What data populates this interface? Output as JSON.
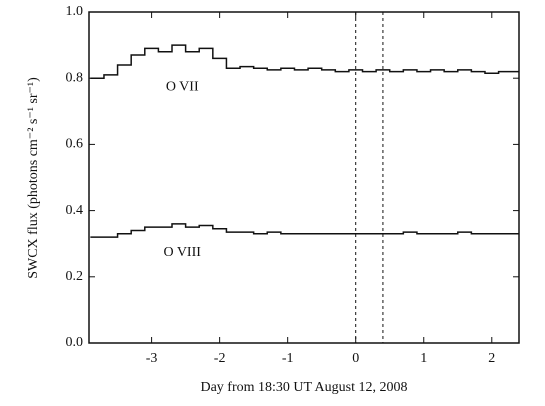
{
  "chart_data": {
    "type": "step",
    "xlabel": "Day from 18:30 UT August 12, 2008",
    "ylabel": "SWCX flux (photons cm⁻² s⁻¹ sr⁻¹)",
    "x": [
      -3.9,
      -3.7,
      -3.5,
      -3.3,
      -3.1,
      -2.9,
      -2.7,
      -2.5,
      -2.3,
      -2.1,
      -1.9,
      -1.7,
      -1.5,
      -1.3,
      -1.1,
      -0.9,
      -0.7,
      -0.5,
      -0.3,
      -0.1,
      0.1,
      0.3,
      0.5,
      0.7,
      0.9,
      1.1,
      1.3,
      1.5,
      1.7,
      1.9,
      2.1,
      2.3
    ],
    "series": [
      {
        "name": "O VII",
        "color": "#111111",
        "values": [
          0.8,
          0.81,
          0.84,
          0.87,
          0.89,
          0.88,
          0.9,
          0.88,
          0.89,
          0.86,
          0.83,
          0.835,
          0.83,
          0.825,
          0.83,
          0.825,
          0.83,
          0.825,
          0.82,
          0.825,
          0.82,
          0.825,
          0.82,
          0.825,
          0.82,
          0.825,
          0.82,
          0.825,
          0.82,
          0.815,
          0.82,
          0.82
        ]
      },
      {
        "name": "O VIII",
        "color": "#111111",
        "values": [
          0.32,
          0.32,
          0.33,
          0.34,
          0.35,
          0.35,
          0.36,
          0.35,
          0.355,
          0.345,
          0.335,
          0.335,
          0.33,
          0.335,
          0.33,
          0.33,
          0.33,
          0.33,
          0.33,
          0.33,
          0.33,
          0.33,
          0.33,
          0.335,
          0.33,
          0.33,
          0.33,
          0.335,
          0.33,
          0.33,
          0.33,
          0.33
        ]
      }
    ],
    "vlines": [
      0,
      0.4
    ],
    "xlim": [
      -3.92,
      2.4
    ],
    "ylim": [
      0,
      1
    ],
    "xticks": [
      -3,
      -2,
      -1,
      0,
      1,
      2
    ],
    "yticks": [
      {
        "value": 0,
        "label": "0.0"
      },
      0.2,
      0.4,
      0.6,
      0.8,
      {
        "value": 1,
        "label": "1.0"
      }
    ]
  }
}
